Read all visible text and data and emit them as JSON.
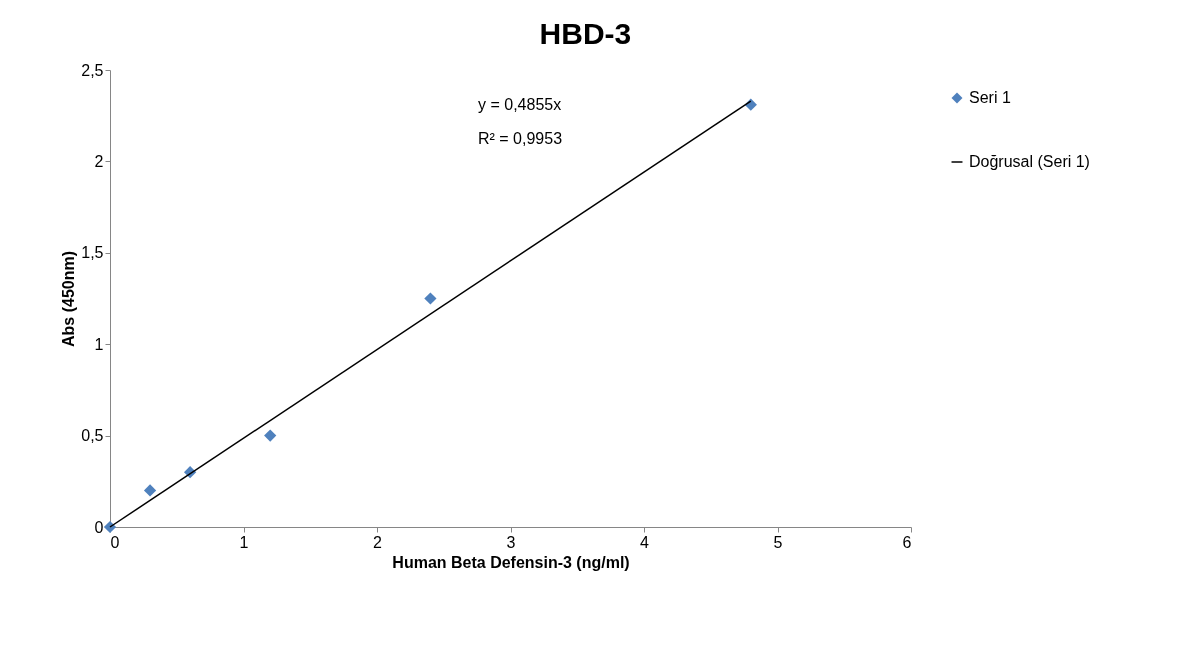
{
  "chart_data": {
    "type": "scatter",
    "title": "HBD-3",
    "xlabel": "Human Beta Defensin-3  (ng/ml)",
    "ylabel": "Abs (450nm)",
    "series": [
      {
        "name": "Seri 1",
        "color": "#4f81bd",
        "marker": "diamond",
        "x": [
          0,
          0.3,
          0.6,
          1.2,
          2.4,
          4.8
        ],
        "values": [
          0,
          0.2,
          0.3,
          0.5,
          1.25,
          2.31
        ]
      },
      {
        "name": "Doğrusal (Seri 1)",
        "type": "line",
        "color": "#000000",
        "x": [
          0,
          4.8
        ],
        "values": [
          0,
          2.33
        ]
      }
    ],
    "annotations": [
      "y = 0,4855x",
      "R² = 0,9953"
    ],
    "xlim": [
      0,
      6
    ],
    "xticks": [
      0,
      1,
      2,
      3,
      4,
      5,
      6
    ],
    "ylim": [
      0,
      2.5
    ],
    "yticks": [
      0,
      {
        "value": 0.5,
        "label": "0,5"
      },
      1,
      {
        "value": 1.5,
        "label": "1,5"
      },
      2,
      {
        "value": 2.5,
        "label": "2,5"
      }
    ],
    "grid": false,
    "legend": "right"
  }
}
